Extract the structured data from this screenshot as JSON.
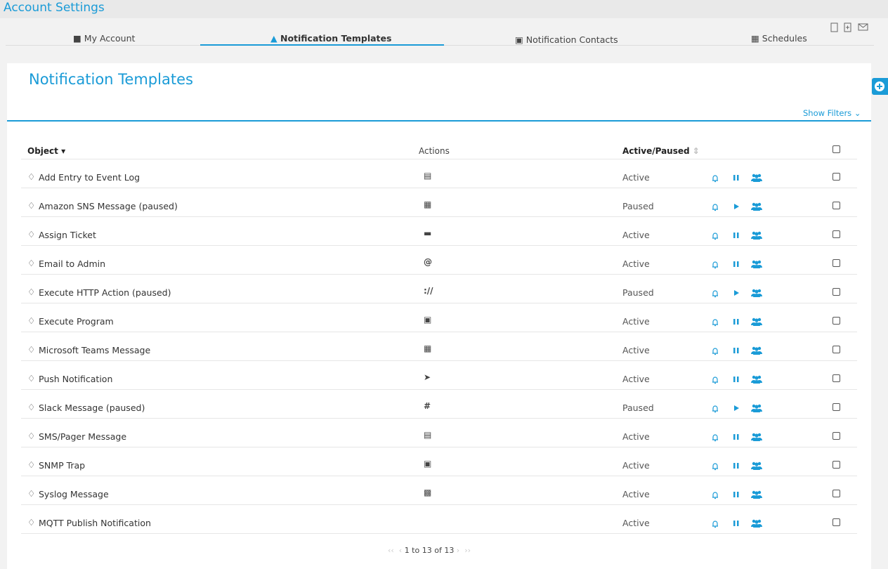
{
  "header": {
    "title": "Account Settings"
  },
  "tabs": [
    "My Account",
    "Notification Templates",
    "Notification Contacts",
    "Schedules"
  ],
  "panel": {
    "title": "Notification Templates",
    "filters": "Show Filters"
  },
  "table": {
    "columns": [
      "Object",
      "Actions",
      "Active/Paused"
    ],
    "rows": [
      [
        "Add Entry to Event Log",
        "Active"
      ],
      [
        "Amazon SNS Message (paused)",
        "Paused"
      ],
      [
        "Assign Ticket",
        "Active"
      ],
      [
        "Email to Admin",
        "Active"
      ],
      [
        "Execute HTTP Action (paused)",
        "Paused"
      ],
      [
        "Execute Program",
        "Active"
      ],
      [
        "Microsoft Teams Message",
        "Active"
      ],
      [
        "Push Notification",
        "Active"
      ],
      [
        "Slack Message (paused)",
        "Paused"
      ],
      [
        "SMS/Pager Message",
        "Active"
      ],
      [
        "SNMP Trap",
        "Active"
      ],
      [
        "Syslog Message",
        "Active"
      ],
      [
        "MQTT Publish Notification",
        "Active"
      ]
    ]
  },
  "pager": "1 to 13 of 13"
}
